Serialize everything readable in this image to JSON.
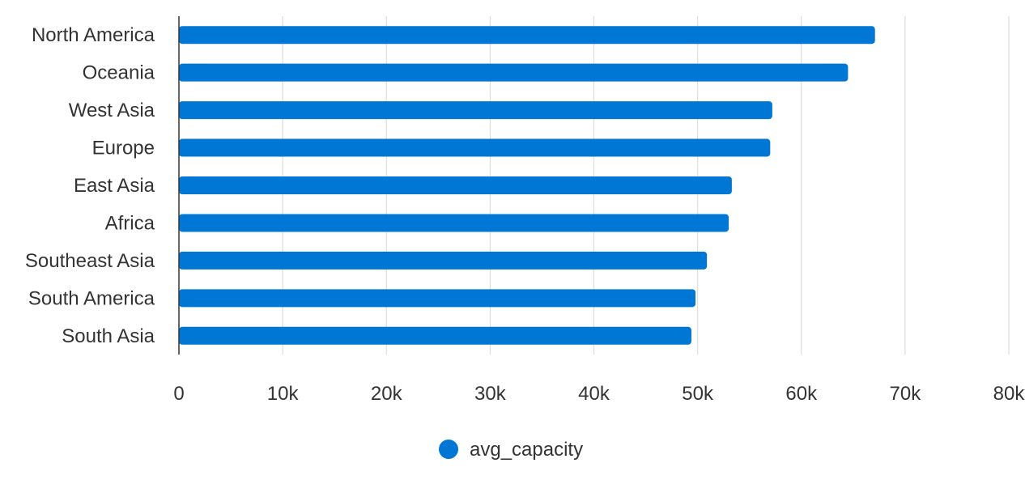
{
  "chart_data": {
    "type": "bar",
    "orientation": "horizontal",
    "categories": [
      "North America",
      "Oceania",
      "West Asia",
      "Europe",
      "East Asia",
      "Africa",
      "Southeast Asia",
      "South America",
      "South Asia"
    ],
    "series": [
      {
        "name": "avg_capacity",
        "color": "#0077d4",
        "values": [
          67100,
          64500,
          57200,
          57000,
          53300,
          53000,
          50900,
          49800,
          49400
        ]
      }
    ],
    "xlim": [
      0,
      80000
    ],
    "x_ticks": [
      0,
      10000,
      20000,
      30000,
      40000,
      50000,
      60000,
      70000,
      80000
    ],
    "x_tick_labels": [
      "0",
      "10k",
      "20k",
      "30k",
      "40k",
      "50k",
      "60k",
      "70k",
      "80k"
    ],
    "grid": "vertical",
    "legend_position": "bottom",
    "title": "",
    "xlabel": "",
    "ylabel": ""
  }
}
